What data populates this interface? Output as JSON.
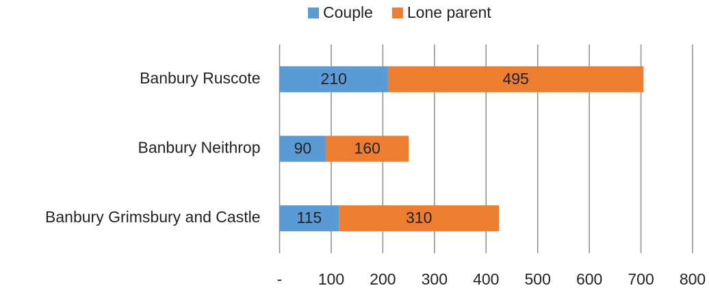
{
  "chart_data": {
    "type": "stacked_barh",
    "categories": [
      "Banbury Ruscote",
      "Banbury Neithrop",
      "Banbury Grimsbury and Castle"
    ],
    "series": [
      {
        "name": "Couple",
        "color": "#5b9bd5",
        "values": [
          210,
          90,
          115
        ]
      },
      {
        "name": "Lone parent",
        "color": "#ed7d31",
        "values": [
          495,
          160,
          310
        ]
      }
    ],
    "xlim": [
      0,
      800
    ],
    "xticks": [
      {
        "value": 0,
        "label": "-"
      },
      100,
      200,
      300,
      400,
      500,
      600,
      700,
      800
    ],
    "grid": true,
    "legend": "top"
  }
}
